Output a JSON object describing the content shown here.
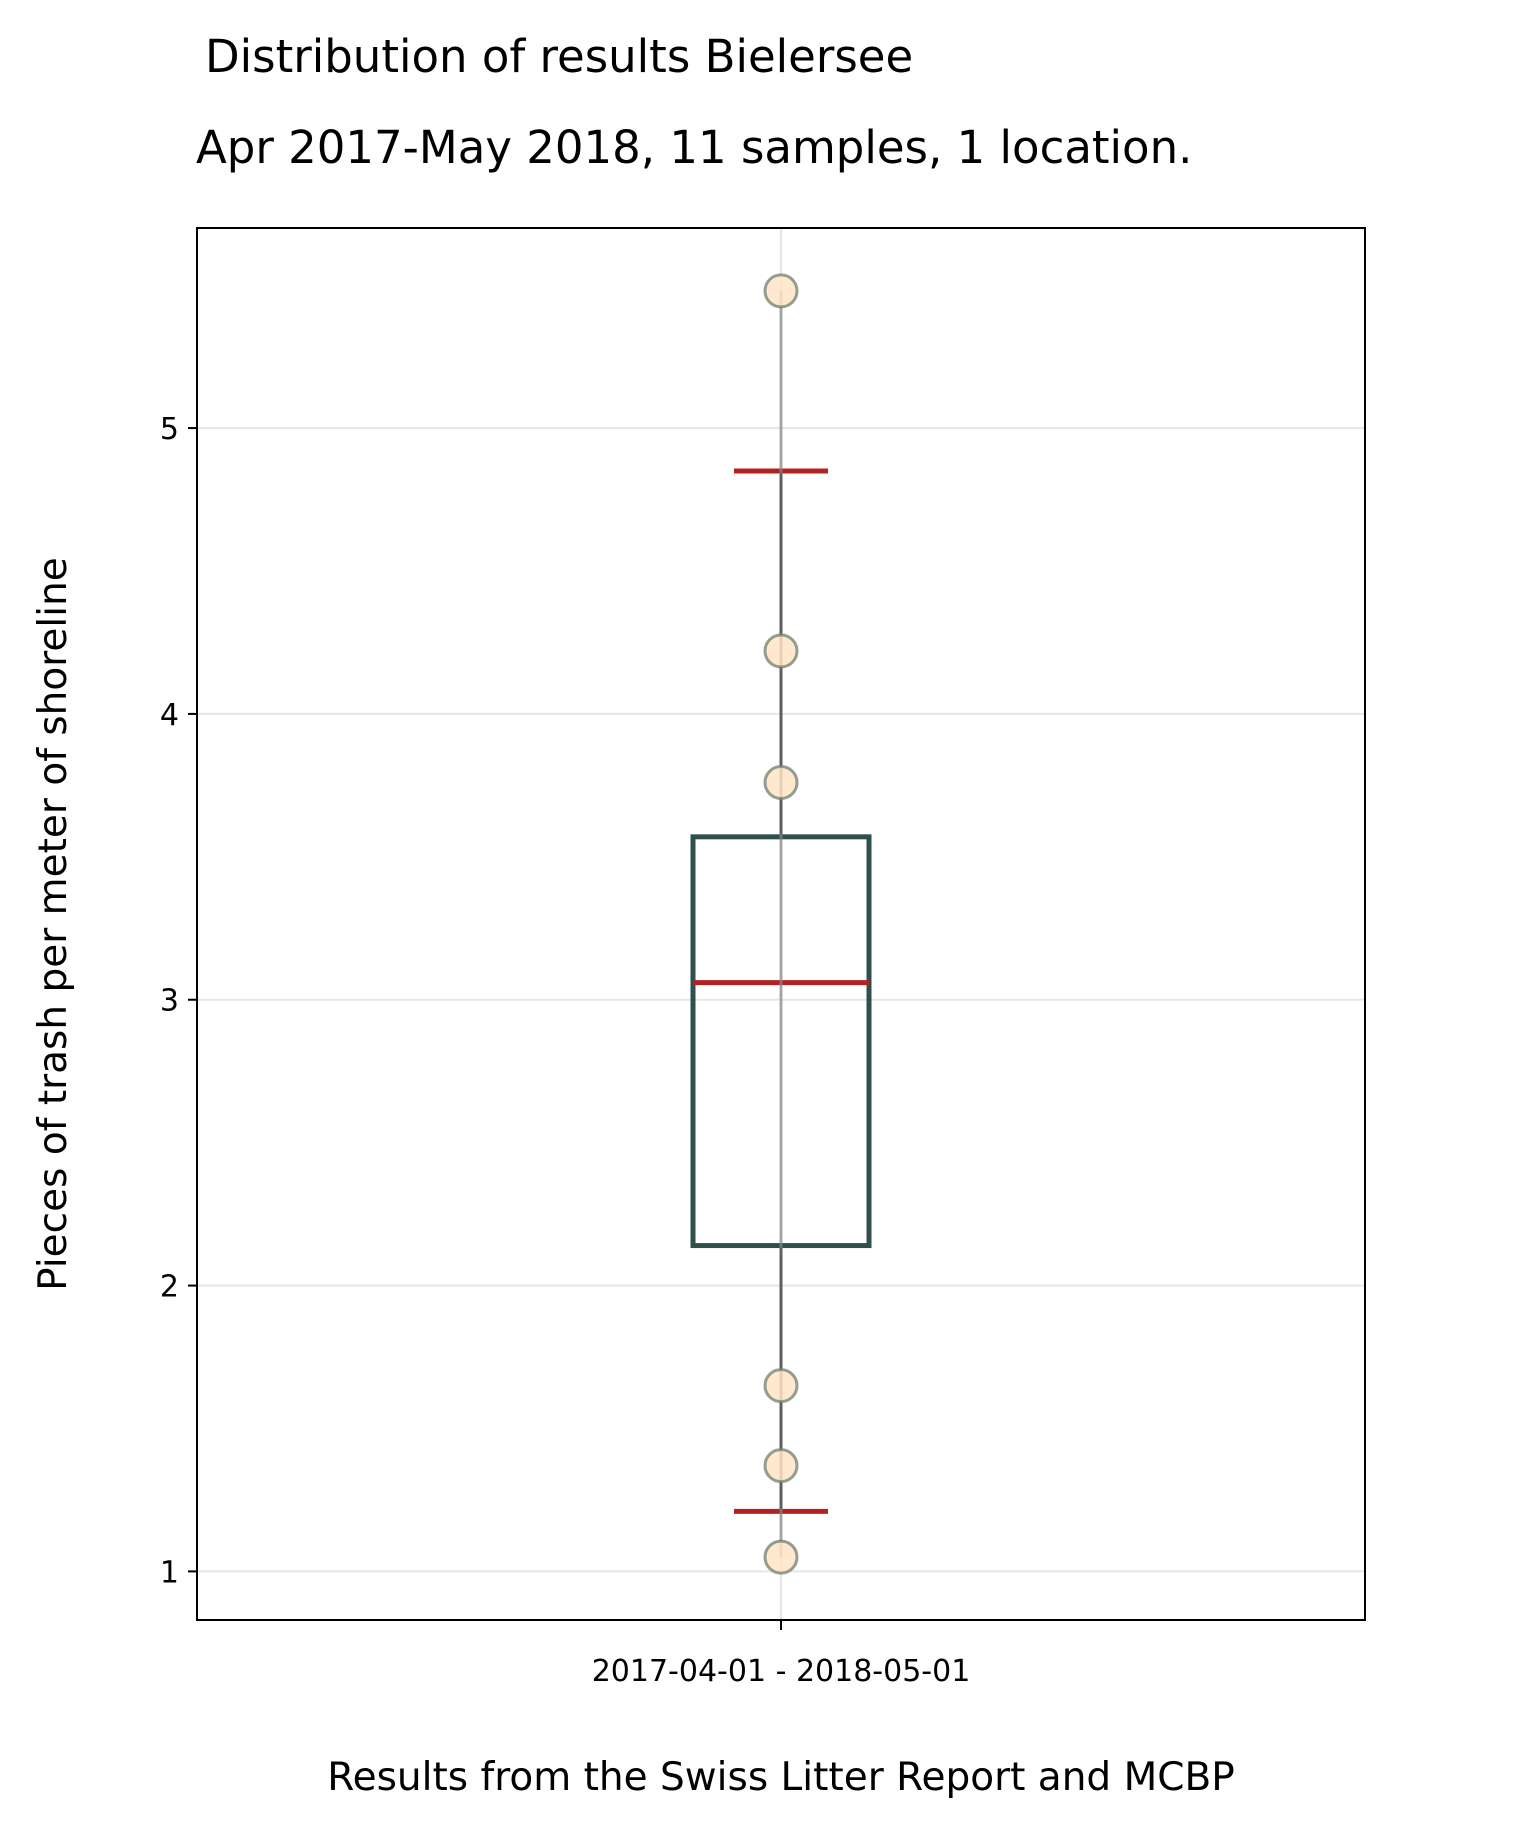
{
  "chart_data": {
    "type": "box",
    "title": "Distribution of results Bielersee",
    "subtitle": "Apr 2017-May 2018, 11 samples, 1 location.",
    "xlabel": "Results from the Swiss Litter Report and MCBP",
    "ylabel": "Pieces of trash per meter of shoreline",
    "categories": [
      "2017-04-01 - 2018-05-01"
    ],
    "yticks": [
      1,
      2,
      3,
      4,
      5
    ],
    "ylim": [
      0.83,
      5.7
    ],
    "grid": true,
    "box": {
      "q1": 2.14,
      "median": 3.06,
      "q3": 3.57,
      "whisker_low": 1.21,
      "whisker_high": 4.85
    },
    "points": [
      5.48,
      4.22,
      3.76,
      1.65,
      1.37,
      1.05
    ],
    "colors": {
      "box": "#2f4f4f",
      "median": "#b22222",
      "whisker_caps": "#b22222",
      "points_fill": "#ffe4c4",
      "points_edge": "#708070",
      "grid": "#e6e6e6"
    }
  }
}
